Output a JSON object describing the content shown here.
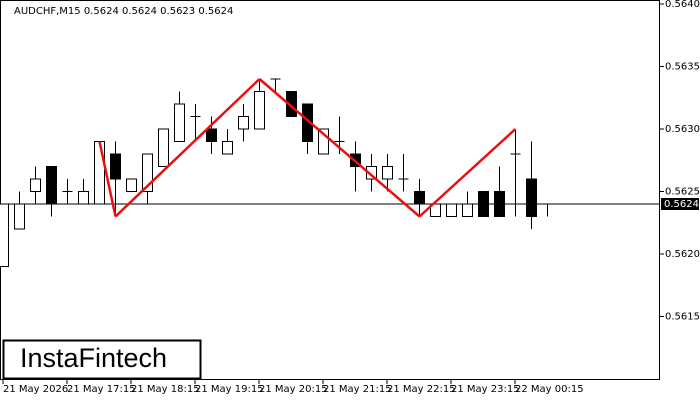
{
  "chart_data": {
    "type": "candlestick",
    "title": "AUDCHF,M15  0.5624 0.5624 0.5623 0.5624",
    "logo": "InstaFintech",
    "categories": [
      "21 May 2026",
      null,
      null,
      null,
      "21 May 17:15",
      null,
      null,
      null,
      "21 May 18:15",
      null,
      null,
      null,
      "21 May 19:15",
      null,
      null,
      null,
      "21 May 20:15",
      null,
      null,
      null,
      "21 May 21:15",
      null,
      null,
      null,
      "21 May 22:15",
      null,
      null,
      null,
      "21 May 23:15",
      null,
      null,
      null,
      "22 May 00:15",
      null,
      null
    ],
    "open": [
      0.5619,
      0.5622,
      0.5625,
      0.5627,
      0.5625,
      0.5624,
      0.5624,
      0.5628,
      0.5625,
      0.5625,
      0.5627,
      0.5629,
      0.5631,
      0.563,
      0.5628,
      0.563,
      0.563,
      0.5634,
      0.5633,
      0.5632,
      0.5628,
      0.5629,
      0.5628,
      0.5626,
      0.5626,
      0.5626,
      0.5625,
      0.5623,
      0.5623,
      0.5623,
      0.5625,
      0.5625,
      0.5628,
      0.5626,
      0.5624
    ],
    "high": [
      0.5624,
      0.5625,
      0.5627,
      0.5627,
      0.5626,
      0.5626,
      0.5629,
      0.5629,
      0.5626,
      0.5628,
      0.563,
      0.5633,
      0.5632,
      0.5631,
      0.563,
      0.5632,
      0.5634,
      0.5634,
      0.5633,
      0.5632,
      0.563,
      0.5631,
      0.5629,
      0.5628,
      0.5628,
      0.5628,
      0.5626,
      0.5624,
      0.5624,
      0.5625,
      0.5625,
      0.5627,
      0.563,
      0.5629,
      0.5624
    ],
    "low": [
      0.5619,
      0.5622,
      0.5624,
      0.5623,
      0.5624,
      0.5624,
      0.5624,
      0.5623,
      0.5625,
      0.5624,
      0.5627,
      0.5629,
      0.5629,
      0.5628,
      0.5628,
      0.5629,
      0.563,
      0.5633,
      0.5631,
      0.5628,
      0.5628,
      0.5628,
      0.5625,
      0.5625,
      0.5625,
      0.5625,
      0.5623,
      0.5623,
      0.5623,
      0.5623,
      0.5623,
      0.5623,
      0.5623,
      0.5622,
      0.5623
    ],
    "close": [
      0.5624,
      0.5624,
      0.5626,
      0.5624,
      0.5625,
      0.5625,
      0.5629,
      0.5626,
      0.5626,
      0.5628,
      0.563,
      0.5632,
      0.5631,
      0.5629,
      0.5629,
      0.5631,
      0.5633,
      0.5634,
      0.5631,
      0.5629,
      0.563,
      0.5629,
      0.5627,
      0.5627,
      0.5627,
      0.5626,
      0.5624,
      0.5624,
      0.5624,
      0.5624,
      0.5623,
      0.5623,
      0.5628,
      0.5623,
      0.5624
    ],
    "pattern": {
      "color": "#e81010",
      "values": [
        null,
        null,
        null,
        null,
        null,
        null,
        0.5629,
        0.5623,
        null,
        null,
        null,
        null,
        null,
        null,
        null,
        null,
        0.5634,
        null,
        null,
        null,
        null,
        null,
        null,
        null,
        null,
        null,
        0.5623,
        null,
        null,
        null,
        null,
        null,
        0.563,
        null,
        null
      ]
    },
    "last_price": 0.5624,
    "ylim": [
      0.561,
      0.564
    ],
    "yticks": [
      0.5615,
      {
        "value": 0.562,
        "label": "0.5620"
      },
      0.5625,
      {
        "value": 0.563,
        "label": "0.5630"
      },
      0.5635,
      {
        "value": 0.564,
        "label": "0.5640"
      }
    ]
  }
}
